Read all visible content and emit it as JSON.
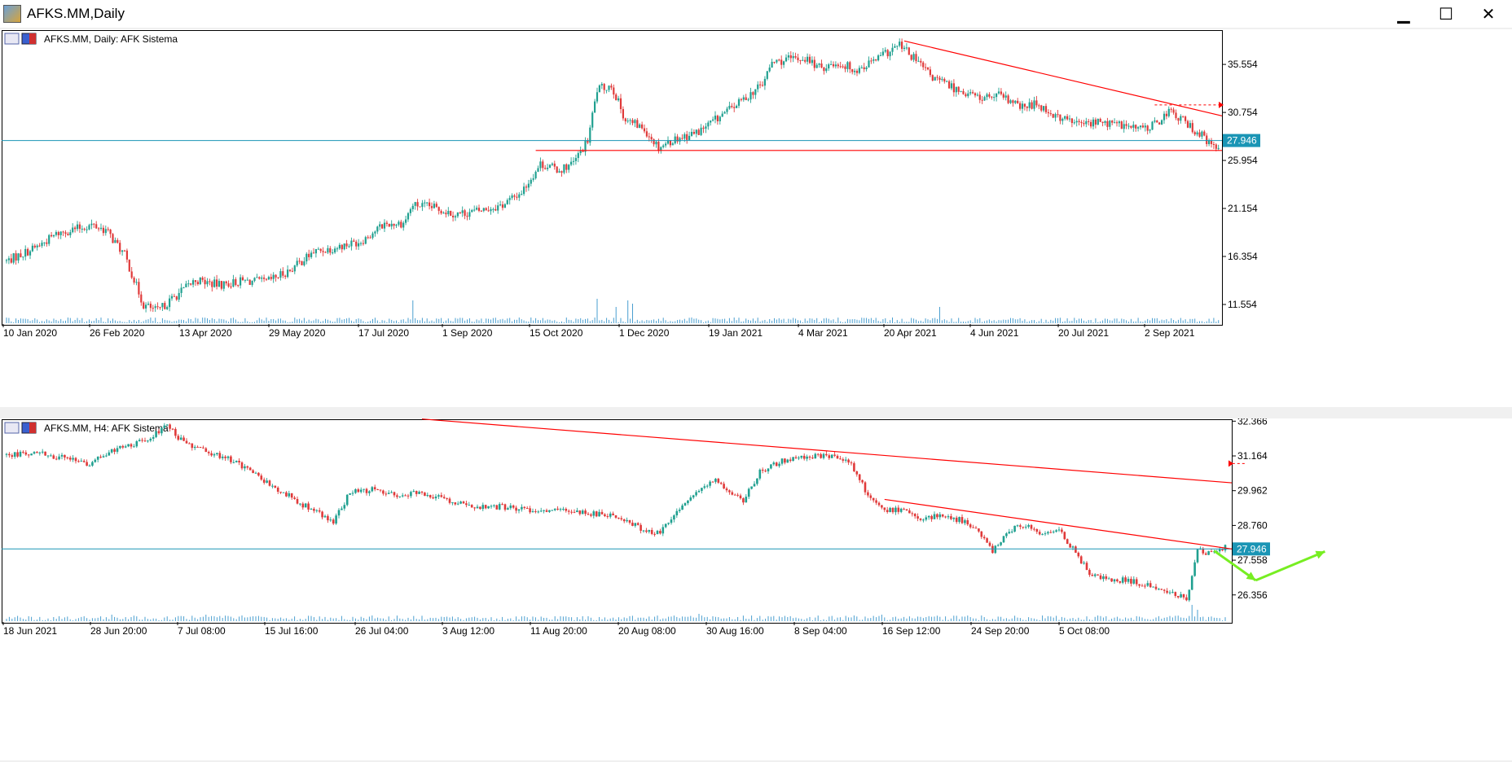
{
  "window": {
    "title": "AFKS.MM,Daily",
    "minimize_glyph": "▁",
    "maximize_glyph": "☐",
    "close_glyph": "✕"
  },
  "colors": {
    "bull": "#20a090",
    "bear": "#e03a3a",
    "level": "#1a95b5",
    "trend": "#ff0000",
    "arrow": "#77ee22",
    "axis": "#000000",
    "volume": "#4a9fd0"
  },
  "chart_data": [
    {
      "type": "candlestick",
      "title": "AFKS.MM, Daily:  AFK Sistema",
      "timeframe": "Daily",
      "ylim": [
        9.6,
        38.9
      ],
      "y_ticks": [
        "35.554",
        "30.754",
        "25.954",
        "21.154",
        "16.354",
        "11.554"
      ],
      "x_ticks": [
        "10 Jan 2020",
        "26 Feb 2020",
        "13 Apr 2020",
        "29 May 2020",
        "17 Jul 2020",
        "1 Sep 2020",
        "15 Oct 2020",
        "1 Dec 2020",
        "19 Jan 2021",
        "4 Mar 2021",
        "20 Apr 2021",
        "4 Jun 2021",
        "20 Jul 2021",
        "2 Sep 2021"
      ],
      "current_price": "27.946",
      "close_path": [
        [
          0,
          15.9
        ],
        [
          12,
          17.2
        ],
        [
          22,
          18.7
        ],
        [
          36,
          19.5
        ],
        [
          42,
          19.0
        ],
        [
          50,
          16.5
        ],
        [
          58,
          11.5
        ],
        [
          64,
          10.9
        ],
        [
          70,
          12.1
        ],
        [
          80,
          14.0
        ],
        [
          90,
          13.5
        ],
        [
          100,
          13.9
        ],
        [
          110,
          13.8
        ],
        [
          120,
          15.0
        ],
        [
          130,
          16.8
        ],
        [
          140,
          17.3
        ],
        [
          150,
          17.9
        ],
        [
          160,
          19.6
        ],
        [
          168,
          19.7
        ],
        [
          172,
          21.5
        ],
        [
          180,
          21.3
        ],
        [
          190,
          20.6
        ],
        [
          200,
          20.9
        ],
        [
          210,
          21.5
        ],
        [
          218,
          22.8
        ],
        [
          226,
          25.6
        ],
        [
          234,
          25.0
        ],
        [
          240,
          25.7
        ],
        [
          246,
          27.9
        ],
        [
          250,
          33.0
        ],
        [
          256,
          33.5
        ],
        [
          262,
          30.0
        ],
        [
          270,
          29.1
        ],
        [
          276,
          27.3
        ],
        [
          284,
          28.2
        ],
        [
          292,
          28.7
        ],
        [
          300,
          30.0
        ],
        [
          310,
          31.7
        ],
        [
          320,
          33.6
        ],
        [
          324,
          35.7
        ],
        [
          330,
          36.0
        ],
        [
          338,
          36.2
        ],
        [
          344,
          35.2
        ],
        [
          352,
          35.7
        ],
        [
          360,
          35.0
        ],
        [
          370,
          36.3
        ],
        [
          378,
          37.5
        ],
        [
          386,
          35.7
        ],
        [
          392,
          34.2
        ],
        [
          402,
          33.1
        ],
        [
          412,
          32.2
        ],
        [
          420,
          32.4
        ],
        [
          430,
          31.2
        ],
        [
          436,
          31.7
        ],
        [
          444,
          30.4
        ],
        [
          454,
          29.6
        ],
        [
          462,
          29.8
        ],
        [
          472,
          29.5
        ],
        [
          480,
          29.1
        ],
        [
          486,
          29.5
        ],
        [
          492,
          30.9
        ],
        [
          498,
          29.9
        ],
        [
          506,
          28.4
        ],
        [
          512,
          27.0
        ],
        [
          516,
          27.9
        ]
      ],
      "volume_spikes": [
        [
          172,
          2.8
        ],
        [
          250,
          3.0
        ],
        [
          263,
          2.8
        ],
        [
          265,
          2.4
        ],
        [
          258,
          2.0
        ],
        [
          395,
          2.0
        ]
      ],
      "lines": [
        {
          "kind": "horizontal",
          "name": "current-price-line",
          "price": 27.946,
          "color": "#1a95b5"
        },
        {
          "kind": "horizontal-segment",
          "name": "support-line",
          "price": 26.95,
          "from_bar": 224,
          "to_bar": 518,
          "color": "#ff0000"
        },
        {
          "kind": "trend",
          "name": "resistance-trendline",
          "from": [
            380,
            37.9
          ],
          "to": [
            520,
            30.1
          ],
          "color": "#ff0000"
        },
        {
          "kind": "dashed-arrow",
          "name": "price-target-arrow",
          "price": 31.5,
          "from_bar": 486,
          "color": "#ff0000"
        }
      ]
    },
    {
      "type": "candlestick",
      "title": "AFKS.MM, H4:  AFK Sistema",
      "timeframe": "H4",
      "ylim": [
        25.42,
        32.46
      ],
      "y_ticks": [
        "32.366",
        "31.164",
        "29.962",
        "28.760",
        "27.558",
        "26.356"
      ],
      "x_ticks": [
        "18 Jun 2021",
        "28 Jun 20:00",
        "7 Jul 08:00",
        "15 Jul 16:00",
        "26 Jul 04:00",
        "3 Aug 12:00",
        "11 Aug 20:00",
        "20 Aug 08:00",
        "30 Aug 16:00",
        "8 Sep 04:00",
        "16 Sep 12:00",
        "24 Sep 20:00",
        "5 Oct 08:00"
      ],
      "current_price": "27.946",
      "close_path": [
        [
          0,
          31.2
        ],
        [
          10,
          31.3
        ],
        [
          20,
          31.1
        ],
        [
          30,
          30.9
        ],
        [
          40,
          31.4
        ],
        [
          50,
          31.7
        ],
        [
          58,
          32.2
        ],
        [
          64,
          31.6
        ],
        [
          72,
          31.3
        ],
        [
          80,
          31.1
        ],
        [
          90,
          30.5
        ],
        [
          100,
          29.9
        ],
        [
          110,
          29.3
        ],
        [
          118,
          28.9
        ],
        [
          124,
          29.9
        ],
        [
          132,
          30.0
        ],
        [
          140,
          29.8
        ],
        [
          150,
          29.9
        ],
        [
          160,
          29.6
        ],
        [
          170,
          29.4
        ],
        [
          180,
          29.4
        ],
        [
          190,
          29.3
        ],
        [
          200,
          29.3
        ],
        [
          210,
          29.2
        ],
        [
          220,
          29.1
        ],
        [
          224,
          28.9
        ],
        [
          230,
          28.6
        ],
        [
          236,
          28.5
        ],
        [
          240,
          29.0
        ],
        [
          248,
          29.8
        ],
        [
          256,
          30.3
        ],
        [
          262,
          29.9
        ],
        [
          266,
          29.6
        ],
        [
          272,
          30.6
        ],
        [
          280,
          31.0
        ],
        [
          290,
          31.1
        ],
        [
          296,
          31.2
        ],
        [
          304,
          31.0
        ],
        [
          310,
          30.0
        ],
        [
          316,
          29.3
        ],
        [
          322,
          29.3
        ],
        [
          330,
          29.0
        ],
        [
          338,
          29.1
        ],
        [
          346,
          28.9
        ],
        [
          352,
          28.4
        ],
        [
          356,
          27.9
        ],
        [
          362,
          28.6
        ],
        [
          368,
          28.8
        ],
        [
          374,
          28.4
        ],
        [
          380,
          28.6
        ],
        [
          386,
          27.8
        ],
        [
          392,
          27.0
        ],
        [
          400,
          26.9
        ],
        [
          408,
          26.8
        ],
        [
          416,
          26.6
        ],
        [
          422,
          26.4
        ],
        [
          426,
          26.2
        ],
        [
          430,
          27.9
        ],
        [
          434,
          27.8
        ],
        [
          440,
          28.0
        ]
      ],
      "volume_spikes": [
        [
          428,
          2.0
        ],
        [
          430,
          1.4
        ],
        [
          38,
          0.8
        ],
        [
          72,
          0.8
        ],
        [
          250,
          0.9
        ],
        [
          316,
          0.8
        ]
      ],
      "lines": [
        {
          "kind": "horizontal",
          "name": "current-price-line",
          "price": 27.946,
          "color": "#1a95b5"
        },
        {
          "kind": "trend",
          "name": "long-downtrend-line",
          "from": [
            150,
            32.44
          ],
          "to": [
            480,
            29.95
          ],
          "color": "#ff0000"
        },
        {
          "kind": "trend",
          "name": "short-downtrend-line",
          "from": [
            317,
            29.66
          ],
          "to": [
            480,
            27.43
          ],
          "color": "#ff0000"
        },
        {
          "kind": "dashed-arrow",
          "name": "price-target-arrow",
          "price": 30.9,
          "from_bar": 447,
          "color": "#ff0000"
        },
        {
          "kind": "projection",
          "name": "green-projection-arrow",
          "points": [
            [
              436,
              27.88
            ],
            [
              451,
              26.86
            ],
            [
              476,
              27.86
            ]
          ],
          "color": "#77ee22"
        }
      ]
    }
  ]
}
